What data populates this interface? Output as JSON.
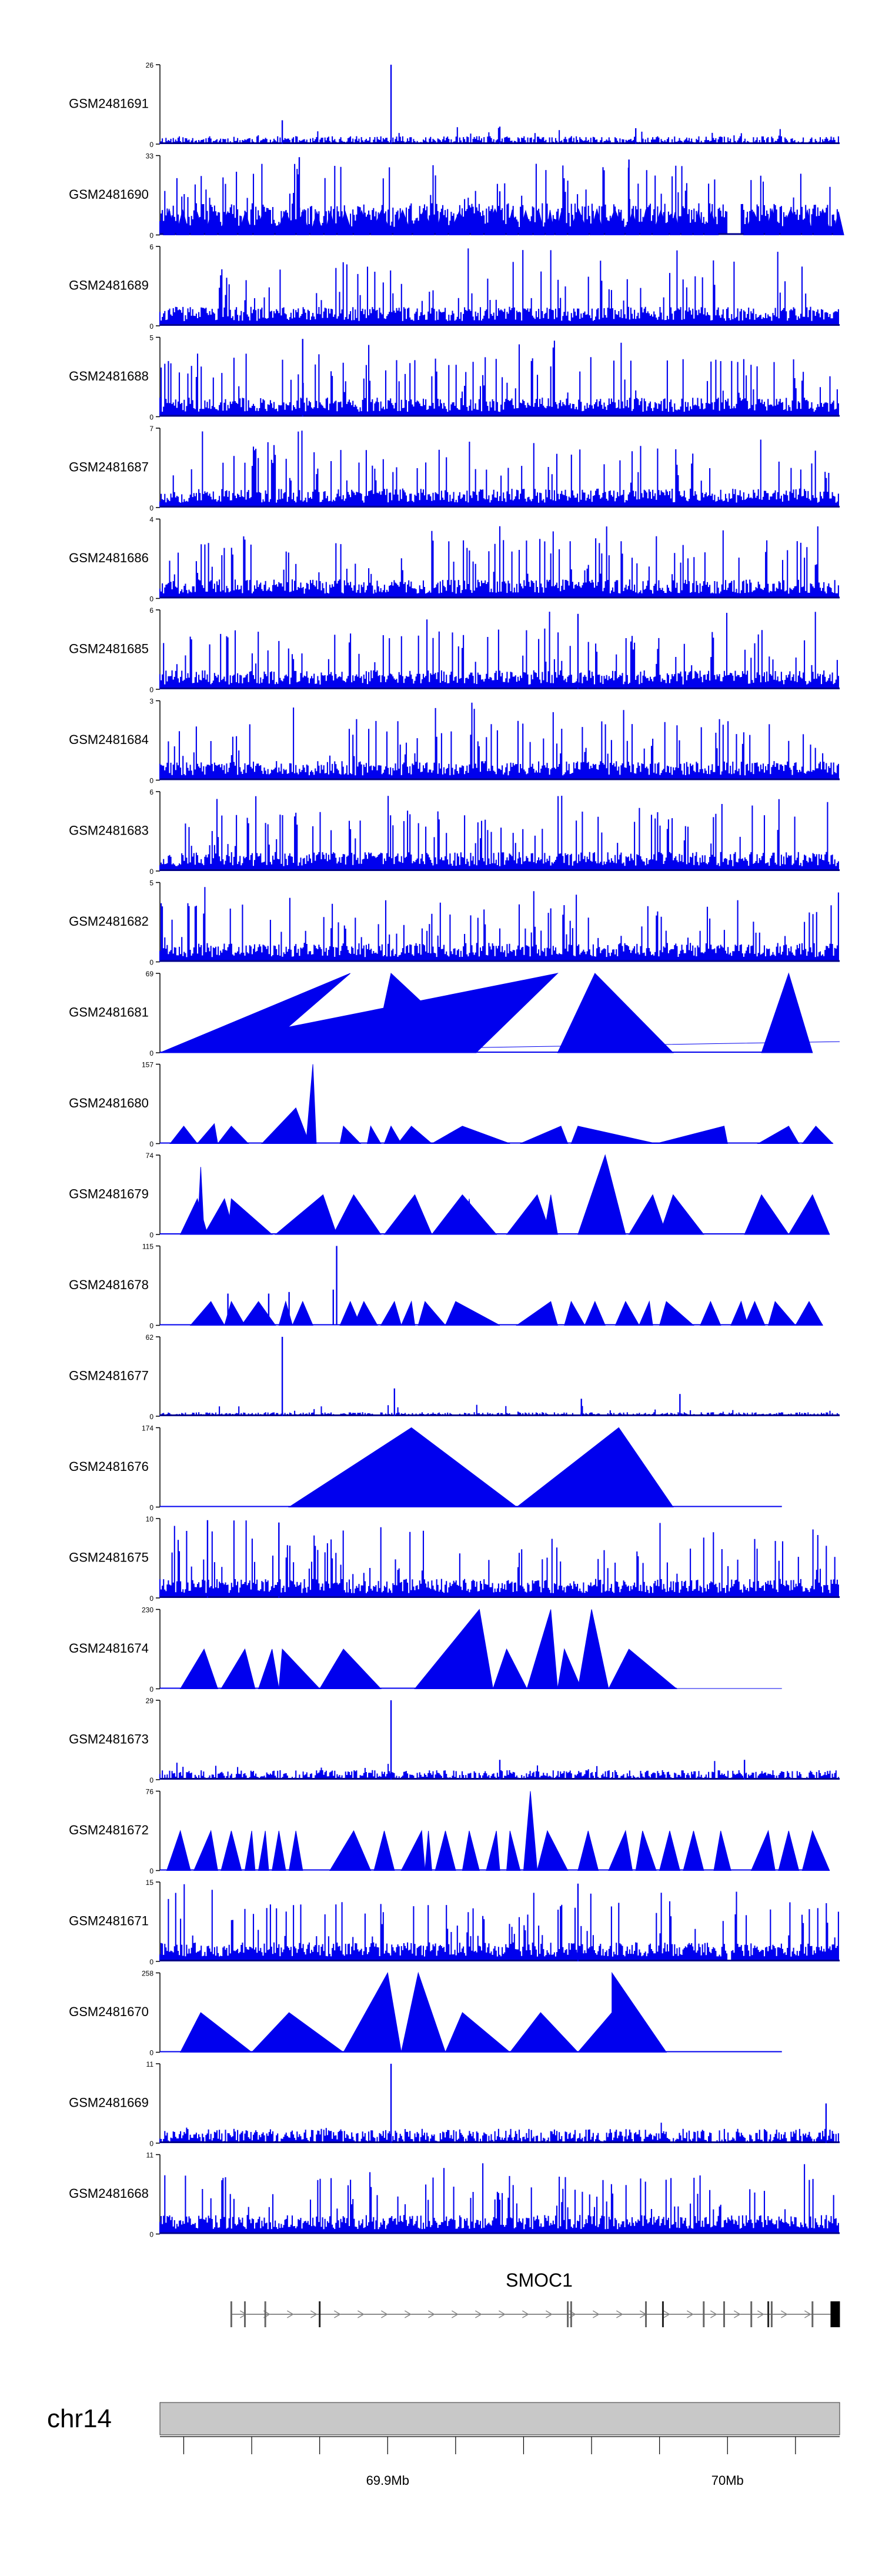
{
  "chart_data": {
    "type": "area",
    "tracks": [
      {
        "name": "GSM2481691",
        "ymax": "26",
        "ymin": "0",
        "style": "noise",
        "seed": 11,
        "base": 0.1,
        "spikes": [
          [
            0.34,
            1.0
          ],
          [
            0.18,
            0.3
          ],
          [
            0.5,
            0.22
          ],
          [
            0.7,
            0.2
          ]
        ]
      },
      {
        "name": "GSM2481690",
        "ymax": "33",
        "ymin": "0",
        "style": "dense-tri",
        "seed": 23,
        "gaps": [
          [
            0.835,
            0.855
          ]
        ],
        "spikes": [
          [
            0.205,
            0.98
          ],
          [
            0.69,
            0.95
          ],
          [
            0.5,
            0.55
          ]
        ]
      },
      {
        "name": "GSM2481689",
        "ymax": "6",
        "ymin": "0",
        "style": "dense",
        "seed": 37
      },
      {
        "name": "GSM2481688",
        "ymax": "5",
        "ymin": "0",
        "style": "dense",
        "seed": 41,
        "spikes": [
          [
            0.21,
            0.98
          ]
        ]
      },
      {
        "name": "GSM2481687",
        "ymax": "7",
        "ymin": "0",
        "style": "dense",
        "seed": 53
      },
      {
        "name": "GSM2481686",
        "ymax": "4",
        "ymin": "0",
        "style": "dense",
        "seed": 67
      },
      {
        "name": "GSM2481685",
        "ymax": "6",
        "ymin": "0",
        "style": "dense",
        "seed": 71,
        "spikes": [
          [
            0.615,
            0.95
          ]
        ]
      },
      {
        "name": "GSM2481684",
        "ymax": "3",
        "ymin": "0",
        "style": "dense",
        "seed": 83
      },
      {
        "name": "GSM2481683",
        "ymax": "6",
        "ymin": "0",
        "style": "dense",
        "seed": 97
      },
      {
        "name": "GSM2481682",
        "ymax": "5",
        "ymin": "0",
        "style": "dense",
        "seed": 101
      },
      {
        "name": "GSM2481681",
        "ymax": "69",
        "ymin": "0",
        "style": "tri",
        "flat_from": 0.96,
        "peaks": [
          [
            0.0,
            0.0,
            1.0,
            0.14,
            0.0
          ],
          [
            0.145,
            0.0,
            0.28,
            1.0,
            0.0
          ],
          [
            0.315,
            0.0,
            0.34,
            1.0,
            0.465
          ],
          [
            0.465,
            0.0,
            0.585,
            1.0,
            0.0
          ],
          [
            0.585,
            0.0,
            0.64,
            1.0,
            0.755
          ],
          [
            0.885,
            0.0,
            0.925,
            1.0,
            0.96
          ]
        ]
      },
      {
        "name": "GSM2481680",
        "ymax": "157",
        "ymin": "0",
        "style": "tri",
        "flat_from": 0.99,
        "peaks": [
          [
            0.015,
            0.0,
            0.035,
            0.22,
            0.055
          ],
          [
            0.055,
            0.0,
            0.08,
            0.25,
            0.085
          ],
          [
            0.085,
            0.0,
            0.105,
            0.22,
            0.13
          ],
          [
            0.15,
            0.0,
            0.2,
            0.45,
            0.22
          ],
          [
            0.215,
            0.0,
            0.225,
            1.0,
            0.23
          ],
          [
            0.265,
            0.0,
            0.27,
            0.22,
            0.295
          ],
          [
            0.305,
            0.0,
            0.31,
            0.22,
            0.325
          ],
          [
            0.33,
            0.0,
            0.34,
            0.22,
            0.355
          ],
          [
            0.35,
            0.0,
            0.37,
            0.22,
            0.4
          ],
          [
            0.4,
            0.0,
            0.445,
            0.22,
            0.515
          ],
          [
            0.53,
            0.0,
            0.59,
            0.22,
            0.6
          ],
          [
            0.605,
            0.0,
            0.615,
            0.22,
            0.73
          ],
          [
            0.73,
            0.0,
            0.83,
            0.22,
            0.835
          ],
          [
            0.88,
            0.0,
            0.925,
            0.22,
            0.94
          ],
          [
            0.945,
            0.0,
            0.965,
            0.22,
            0.99
          ]
        ]
      },
      {
        "name": "GSM2481679",
        "ymax": "74",
        "ymin": "0",
        "style": "tri",
        "flat_from": 0.985,
        "peaks": [
          [
            0.03,
            0.0,
            0.055,
            0.45,
            0.07
          ],
          [
            0.055,
            0.0,
            0.06,
            0.85,
            0.065
          ],
          [
            0.065,
            0.0,
            0.095,
            0.45,
            0.11
          ],
          [
            0.1,
            0.0,
            0.105,
            0.45,
            0.165
          ],
          [
            0.17,
            0.0,
            0.24,
            0.5,
            0.26
          ],
          [
            0.255,
            0.0,
            0.285,
            0.5,
            0.325
          ],
          [
            0.33,
            0.0,
            0.375,
            0.5,
            0.4
          ],
          [
            0.4,
            0.0,
            0.445,
            0.5,
            0.495
          ],
          [
            0.45,
            0.0,
            0.455,
            0.45,
            0.46
          ],
          [
            0.51,
            0.0,
            0.555,
            0.5,
            0.575
          ],
          [
            0.565,
            0.0,
            0.575,
            0.5,
            0.585
          ],
          [
            0.615,
            0.0,
            0.655,
            1.0,
            0.685
          ],
          [
            0.69,
            0.0,
            0.725,
            0.5,
            0.745
          ],
          [
            0.735,
            0.0,
            0.755,
            0.5,
            0.8
          ],
          [
            0.86,
            0.0,
            0.885,
            0.5,
            0.925
          ],
          [
            0.925,
            0.0,
            0.96,
            0.5,
            0.985
          ]
        ]
      },
      {
        "name": "GSM2481678",
        "ymax": "115",
        "ymin": "0",
        "style": "tri",
        "flat_from": 0.975,
        "peaks": [
          [
            0.045,
            0.0,
            0.075,
            0.3,
            0.095
          ],
          [
            0.095,
            0.0,
            0.105,
            0.3,
            0.125
          ],
          [
            0.12,
            0.0,
            0.145,
            0.3,
            0.17
          ],
          [
            0.175,
            0.0,
            0.185,
            0.3,
            0.195
          ],
          [
            0.195,
            0.0,
            0.21,
            0.3,
            0.225
          ],
          [
            0.265,
            0.0,
            0.28,
            0.3,
            0.295
          ],
          [
            0.285,
            0.0,
            0.3,
            0.3,
            0.32
          ],
          [
            0.325,
            0.0,
            0.345,
            0.3,
            0.355
          ],
          [
            0.355,
            0.0,
            0.37,
            0.3,
            0.375
          ],
          [
            0.38,
            0.0,
            0.39,
            0.3,
            0.42
          ],
          [
            0.42,
            0.0,
            0.435,
            0.3,
            0.5
          ],
          [
            0.525,
            0.0,
            0.575,
            0.3,
            0.585
          ],
          [
            0.595,
            0.0,
            0.605,
            0.3,
            0.625
          ],
          [
            0.625,
            0.0,
            0.64,
            0.3,
            0.655
          ],
          [
            0.67,
            0.0,
            0.685,
            0.3,
            0.705
          ],
          [
            0.705,
            0.0,
            0.72,
            0.3,
            0.725
          ],
          [
            0.735,
            0.0,
            0.745,
            0.3,
            0.785
          ],
          [
            0.795,
            0.0,
            0.81,
            0.3,
            0.825
          ],
          [
            0.84,
            0.0,
            0.855,
            0.3,
            0.865
          ],
          [
            0.86,
            0.0,
            0.875,
            0.3,
            0.89
          ],
          [
            0.895,
            0.0,
            0.905,
            0.3,
            0.935
          ],
          [
            0.935,
            0.0,
            0.955,
            0.3,
            0.975
          ]
        ],
        "spikes": [
          [
            0.1,
            0.4
          ],
          [
            0.16,
            0.4
          ],
          [
            0.19,
            0.42
          ],
          [
            0.26,
            1.0
          ],
          [
            0.255,
            0.45
          ]
        ]
      },
      {
        "name": "GSM2481677",
        "ymax": "62",
        "ymin": "0",
        "style": "noise",
        "seed": 131,
        "base": 0.05,
        "spikes": [
          [
            0.18,
            1.0
          ],
          [
            0.345,
            0.35
          ],
          [
            0.62,
            0.22
          ],
          [
            0.765,
            0.28
          ]
        ]
      },
      {
        "name": "GSM2481676",
        "ymax": "174",
        "ymin": "0",
        "style": "tri",
        "flat_from": 0.915,
        "peaks": [
          [
            0.19,
            0.0,
            0.37,
            1.0,
            0.525
          ],
          [
            0.525,
            0.0,
            0.675,
            1.0,
            0.755
          ]
        ]
      },
      {
        "name": "GSM2481675",
        "ymax": "10",
        "ymin": "0",
        "style": "dense",
        "seed": 151,
        "spikes": [
          [
            0.07,
            0.98
          ],
          [
            0.175,
            0.95
          ]
        ]
      },
      {
        "name": "GSM2481674",
        "ymax": "230",
        "ymin": "0",
        "style": "tri",
        "flat_from": 0.76,
        "peaks": [
          [
            0.03,
            0.0,
            0.065,
            0.5,
            0.085
          ],
          [
            0.09,
            0.0,
            0.125,
            0.5,
            0.14
          ],
          [
            0.145,
            0.0,
            0.165,
            0.5,
            0.175
          ],
          [
            0.175,
            0.0,
            0.18,
            0.5,
            0.235
          ],
          [
            0.235,
            0.0,
            0.27,
            0.5,
            0.325
          ],
          [
            0.375,
            0.0,
            0.47,
            1.0,
            0.49
          ],
          [
            0.49,
            0.0,
            0.51,
            0.5,
            0.54
          ],
          [
            0.54,
            0.0,
            0.575,
            1.0,
            0.585
          ],
          [
            0.585,
            0.0,
            0.595,
            0.5,
            0.62
          ],
          [
            0.615,
            0.0,
            0.635,
            1.0,
            0.66
          ],
          [
            0.66,
            0.0,
            0.69,
            0.5,
            0.76
          ]
        ]
      },
      {
        "name": "GSM2481673",
        "ymax": "29",
        "ymin": "0",
        "style": "noise",
        "seed": 173,
        "base": 0.12,
        "spikes": [
          [
            0.34,
            1.0
          ],
          [
            0.5,
            0.25
          ],
          [
            0.86,
            0.25
          ]
        ]
      },
      {
        "name": "GSM2481672",
        "ymax": "76",
        "ymin": "0",
        "style": "tri",
        "flat_from": 0.985,
        "peaks": [
          [
            0.01,
            0.0,
            0.03,
            0.5,
            0.045
          ],
          [
            0.05,
            0.0,
            0.075,
            0.5,
            0.085
          ],
          [
            0.09,
            0.0,
            0.105,
            0.5,
            0.12
          ],
          [
            0.125,
            0.0,
            0.135,
            0.5,
            0.14
          ],
          [
            0.145,
            0.0,
            0.155,
            0.5,
            0.16
          ],
          [
            0.165,
            0.0,
            0.175,
            0.5,
            0.185
          ],
          [
            0.19,
            0.0,
            0.2,
            0.5,
            0.21
          ],
          [
            0.25,
            0.0,
            0.285,
            0.5,
            0.31
          ],
          [
            0.315,
            0.0,
            0.33,
            0.5,
            0.345
          ],
          [
            0.355,
            0.0,
            0.385,
            0.5,
            0.39
          ],
          [
            0.39,
            0.0,
            0.395,
            0.5,
            0.4
          ],
          [
            0.405,
            0.0,
            0.42,
            0.5,
            0.435
          ],
          [
            0.445,
            0.0,
            0.455,
            0.5,
            0.47
          ],
          [
            0.48,
            0.0,
            0.495,
            0.5,
            0.5
          ],
          [
            0.51,
            0.0,
            0.515,
            0.5,
            0.53
          ],
          [
            0.535,
            0.0,
            0.545,
            1.0,
            0.555
          ],
          [
            0.555,
            0.0,
            0.57,
            0.5,
            0.6
          ],
          [
            0.615,
            0.0,
            0.63,
            0.5,
            0.645
          ],
          [
            0.66,
            0.0,
            0.685,
            0.5,
            0.695
          ],
          [
            0.7,
            0.0,
            0.71,
            0.5,
            0.73
          ],
          [
            0.735,
            0.0,
            0.75,
            0.5,
            0.765
          ],
          [
            0.77,
            0.0,
            0.785,
            0.5,
            0.8
          ],
          [
            0.815,
            0.0,
            0.825,
            0.5,
            0.84
          ],
          [
            0.87,
            0.0,
            0.895,
            0.5,
            0.905
          ],
          [
            0.91,
            0.0,
            0.925,
            0.5,
            0.94
          ],
          [
            0.945,
            0.0,
            0.96,
            0.5,
            0.985
          ]
        ]
      },
      {
        "name": "GSM2481671",
        "ymax": "15",
        "ymin": "0",
        "style": "dense",
        "seed": 197,
        "gaps": [
          [
            0.835,
            0.84
          ]
        ],
        "spikes": [
          [
            0.615,
            0.98
          ]
        ]
      },
      {
        "name": "GSM2481670",
        "ymax": "258",
        "ymin": "0",
        "style": "tri",
        "flat_from": 0.915,
        "peaks": [
          [
            0.03,
            0.0,
            0.06,
            0.5,
            0.135
          ],
          [
            0.135,
            0.0,
            0.19,
            0.5,
            0.27
          ],
          [
            0.27,
            0.0,
            0.335,
            1.0,
            0.355
          ],
          [
            0.355,
            0.0,
            0.38,
            1.0,
            0.42
          ],
          [
            0.42,
            0.0,
            0.445,
            0.5,
            0.515
          ],
          [
            0.515,
            0.0,
            0.56,
            0.5,
            0.615
          ],
          [
            0.615,
            0.0,
            0.665,
            0.5,
            0.665
          ],
          [
            0.665,
            0.0,
            0.665,
            1.0,
            0.745
          ]
        ]
      },
      {
        "name": "GSM2481669",
        "ymax": "11",
        "ymin": "0",
        "style": "noise",
        "seed": 211,
        "base": 0.18,
        "spikes": [
          [
            0.34,
            1.0
          ],
          [
            0.98,
            0.5
          ]
        ]
      },
      {
        "name": "GSM2481668",
        "ymax": "11",
        "ymin": "0",
        "style": "dense",
        "seed": 223
      }
    ],
    "gene": {
      "name": "SMOC1",
      "exons": [
        0.105,
        0.125,
        0.155,
        0.235,
        0.6,
        0.605,
        0.715,
        0.74,
        0.8,
        0.83,
        0.87,
        0.895,
        0.9,
        0.96
      ],
      "tail_exon": 0.99
    },
    "chromosome": {
      "name": "chr14",
      "ticks": [
        {
          "pos": 0.035,
          "label": ""
        },
        {
          "pos": 0.135,
          "label": ""
        },
        {
          "pos": 0.235,
          "label": ""
        },
        {
          "pos": 0.335,
          "label": "69.9Mb"
        },
        {
          "pos": 0.435,
          "label": ""
        },
        {
          "pos": 0.535,
          "label": ""
        },
        {
          "pos": 0.635,
          "label": ""
        },
        {
          "pos": 0.735,
          "label": ""
        },
        {
          "pos": 0.835,
          "label": "70Mb"
        },
        {
          "pos": 0.935,
          "label": ""
        }
      ]
    },
    "colors": {
      "fill": "#0000EE",
      "stroke": "#00008B",
      "axis": "#000000",
      "chrom": "#C8C8C8"
    }
  }
}
